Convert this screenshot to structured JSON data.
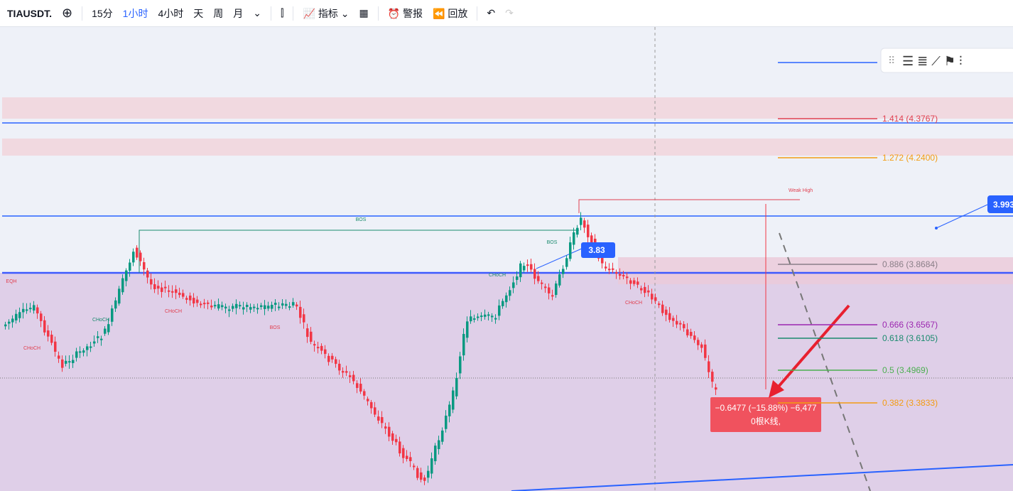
{
  "toolbar": {
    "symbol": "TIAUSDT.",
    "intervals": [
      "15分",
      "1小时",
      "4小时",
      "天",
      "周",
      "月"
    ],
    "indicators": "指标",
    "alerts": "警报",
    "replay": "回放"
  },
  "chart": {
    "structure_labels": [
      "BOS",
      "CHoCH",
      "CHoCH",
      "CHoCH",
      "BOS",
      "BOS",
      "CHoCH",
      "CHoCH",
      "EQH"
    ],
    "weak_high": "Weak High",
    "fib_levels": [
      {
        "label": "1.414 (4.3767)",
        "color": "#e04050"
      },
      {
        "label": "1.272 (4.2400)",
        "color": "#f39c12"
      },
      {
        "label": "0.886 (3.8684)",
        "color": "#8a7f88"
      },
      {
        "label": "0.666 (3.6567)",
        "color": "#9c27b0"
      },
      {
        "label": "0.618 (3.6105)",
        "color": "#1a8a6e"
      },
      {
        "label": "0.5 (3.4969)",
        "color": "#4caf50"
      },
      {
        "label": "0.382 (3.3833)",
        "color": "#f39c12"
      }
    ],
    "price_tag": "3.993",
    "box_tag": "3.83",
    "measure": {
      "line1": "−0.6477 (−15.88%) −6,477",
      "line2": "0根K线,"
    }
  }
}
